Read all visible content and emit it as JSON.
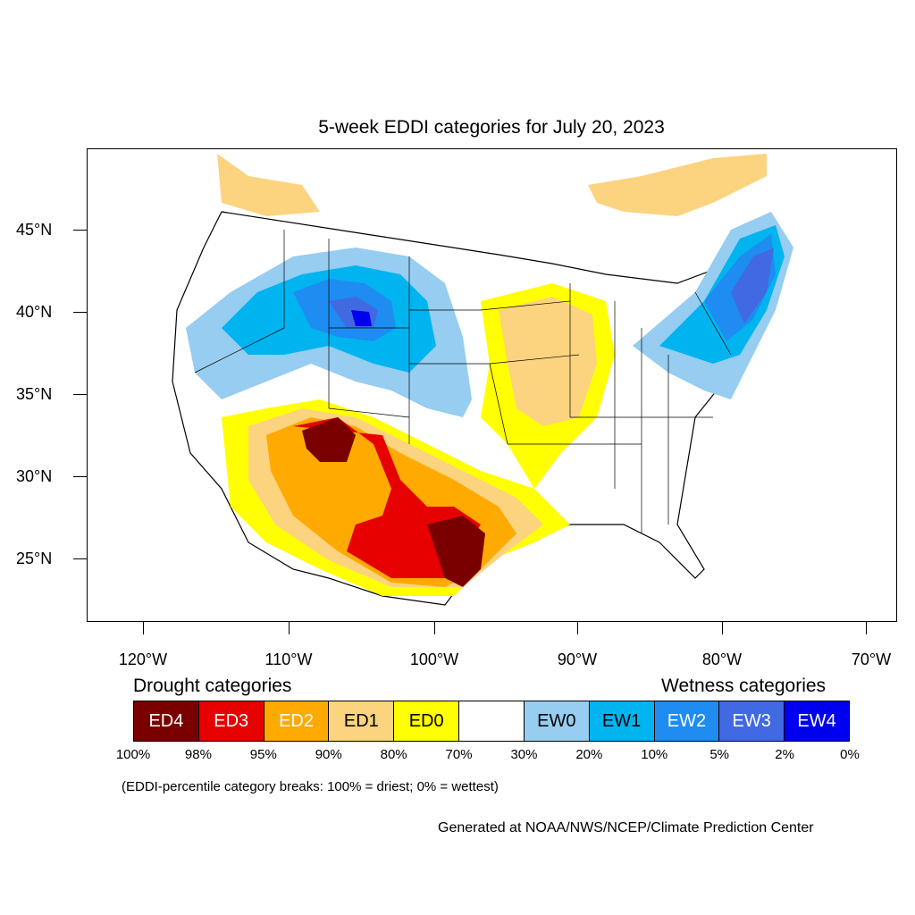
{
  "title": "5-week EDDI categories for July 20, 2023",
  "y_axis": [
    "45°N",
    "40°N",
    "35°N",
    "30°N",
    "25°N"
  ],
  "x_axis": [
    "120°W",
    "110°W",
    "100°W",
    "90°W",
    "80°W",
    "70°W"
  ],
  "drought_title": "Drought categories",
  "wetness_title": "Wetness categories",
  "categories": [
    {
      "label": "ED4",
      "color": "#7a0000",
      "text_color": "#ffffff"
    },
    {
      "label": "ED3",
      "color": "#e60000",
      "text_color": "#ffffff"
    },
    {
      "label": "ED2",
      "color": "#ffaa00",
      "text_color": "#ffffff"
    },
    {
      "label": "ED1",
      "color": "#fcd37f",
      "text_color": "#000000"
    },
    {
      "label": "ED0",
      "color": "#ffff00",
      "text_color": "#000000"
    },
    {
      "label": "",
      "color": "#ffffff",
      "text_color": "#000000"
    },
    {
      "label": "EW0",
      "color": "#96cdf0",
      "text_color": "#000000"
    },
    {
      "label": "EW1",
      "color": "#00b4f0",
      "text_color": "#000000"
    },
    {
      "label": "EW2",
      "color": "#1e8cf0",
      "text_color": "#ffffff"
    },
    {
      "label": "EW3",
      "color": "#4169e1",
      "text_color": "#ffffff"
    },
    {
      "label": "EW4",
      "color": "#0000f0",
      "text_color": "#ffffff"
    }
  ],
  "percentiles": [
    "100%",
    "98%",
    "95%",
    "90%",
    "80%",
    "70%",
    "30%",
    "20%",
    "10%",
    "5%",
    "2%",
    "0%"
  ],
  "note": "(EDDI-percentile category breaks: 100% = driest; 0% = wettest)",
  "credit": "Generated at NOAA/NWS/NCEP/Climate Prediction Center"
}
